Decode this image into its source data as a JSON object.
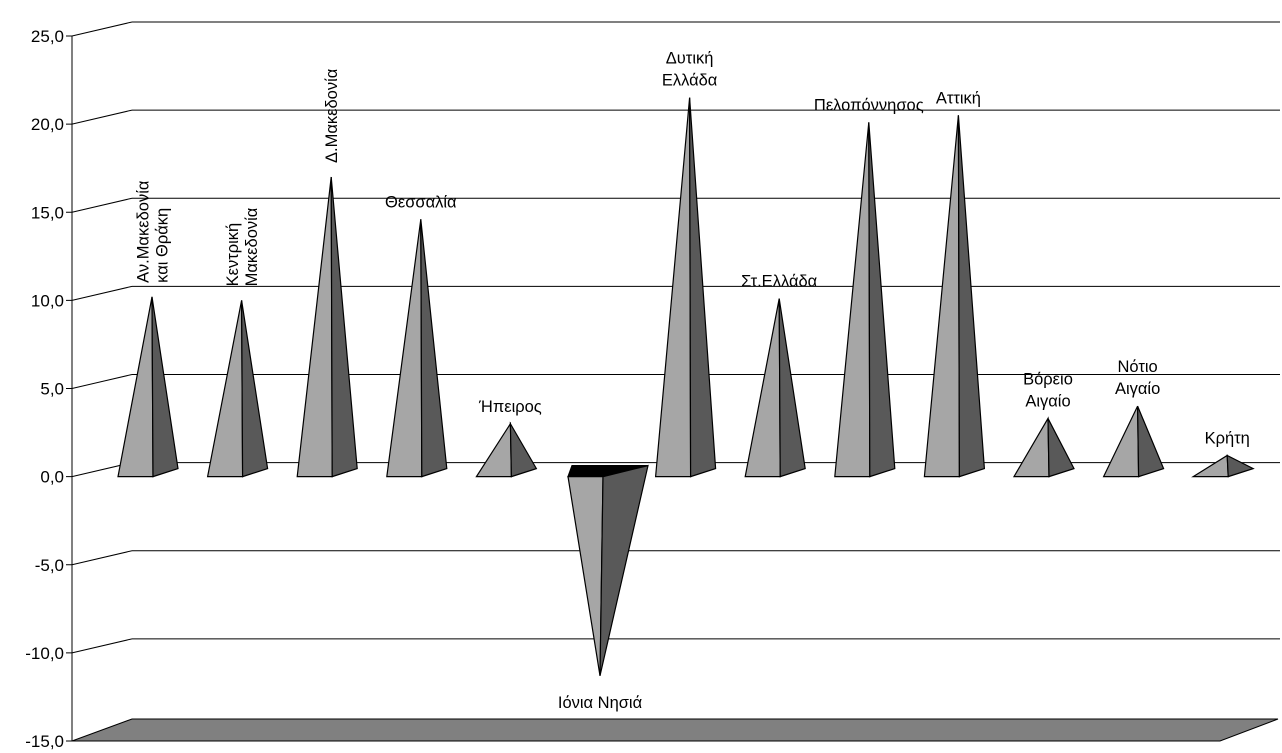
{
  "chart_data": {
    "type": "bar",
    "bar_shape": "pyramid",
    "title": "",
    "xlabel": "",
    "ylabel": "",
    "ylim": [
      -15,
      25
    ],
    "ytick_values": [
      25,
      20,
      15,
      10,
      5,
      0,
      -5,
      -10,
      -15
    ],
    "ytick_labels": [
      "25,0",
      "20,0",
      "15,0",
      "10,0",
      "5,0",
      "0,0",
      "-5,0",
      "-10,0",
      "-15,0"
    ],
    "grid": true,
    "legend": "none",
    "categories": [
      "Αν.Μακεδονία και Θράκη",
      "Κεντρική Μακεδονία",
      "Δ.Μακεδονία",
      "Θεσσαλία",
      "Ήπειρος",
      "Ιόνια Νησιά",
      "Δυτική Ελλάδα",
      "Στ.Ελλάδα",
      "Πελοπόννησος",
      "Αττική",
      "Βόρειο Αιγαίο",
      "Νότιο Αιγαίο",
      "Κρήτη"
    ],
    "category_label_lines": [
      [
        "Αν.Μακεδονία",
        "και Θράκη"
      ],
      [
        "Κεντρική",
        "Μακεδονία"
      ],
      [
        "Δ.Μακεδονία"
      ],
      [
        "Θεσσαλία"
      ],
      [
        "Ήπειρος"
      ],
      [
        "Ιόνια Νησιά"
      ],
      [
        "Δυτική",
        "Ελλάδα"
      ],
      [
        "Στ.Ελλάδα"
      ],
      [
        "Πελοπόννησος"
      ],
      [
        "Αττική"
      ],
      [
        "Βόρειο",
        "Αιγαίο"
      ],
      [
        "Νότιο",
        "Αιγαίο"
      ],
      [
        "Κρήτη"
      ]
    ],
    "label_orientation": [
      "vertical",
      "vertical",
      "vertical",
      "horizontal",
      "horizontal",
      "horizontal",
      "horizontal",
      "horizontal",
      "horizontal",
      "horizontal",
      "horizontal",
      "horizontal",
      "horizontal"
    ],
    "values": [
      10.2,
      10.0,
      17.0,
      14.6,
      3.0,
      -11.3,
      21.5,
      10.1,
      20.1,
      20.5,
      3.3,
      4.0,
      1.2
    ],
    "colors": {
      "front_face": "#a6a6a6",
      "side_face": "#595959",
      "top_face": "#000000",
      "floor": "#808080",
      "grid": "#000000"
    }
  }
}
